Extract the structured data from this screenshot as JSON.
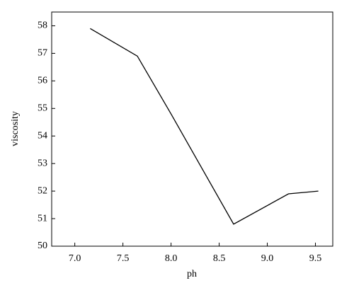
{
  "chart_data": {
    "type": "line",
    "xlabel": "ph",
    "ylabel": "viscosity",
    "x": [
      7.16,
      7.65,
      8.0,
      8.65,
      9.22,
      9.53
    ],
    "values": [
      57.9,
      56.9,
      54.8,
      50.8,
      51.9,
      52.0
    ],
    "color": "#000000",
    "xlim": [
      6.76,
      9.68
    ],
    "xticks": [
      {
        "value": 7,
        "label": "7.0"
      },
      {
        "value": 7.5,
        "label": "7.5"
      },
      {
        "value": 8,
        "label": "8.0"
      },
      {
        "value": 8.5,
        "label": "8.5"
      },
      {
        "value": 9,
        "label": "9.0"
      },
      {
        "value": 9.5,
        "label": "9.5"
      }
    ],
    "ylim": [
      50,
      58.5
    ],
    "yticks": [
      50,
      51,
      52,
      53,
      54,
      55,
      56,
      57,
      58
    ]
  }
}
